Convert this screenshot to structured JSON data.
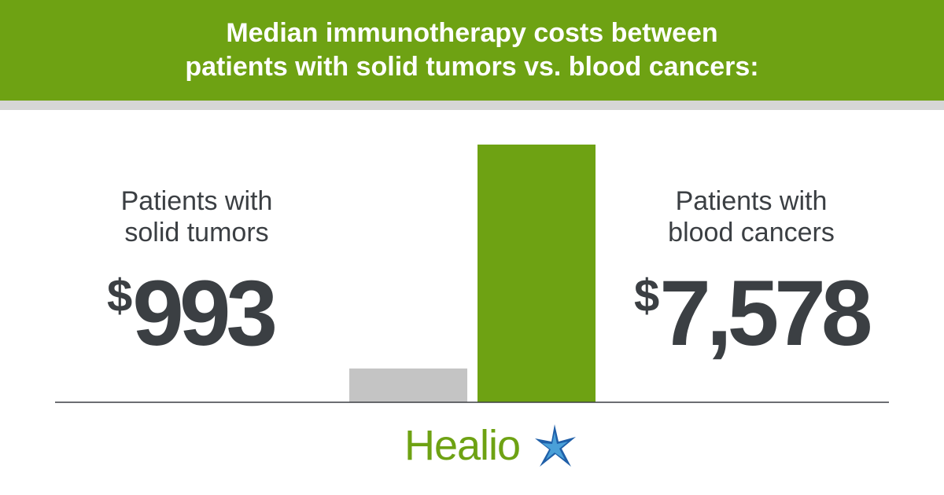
{
  "title_lines": [
    "Median immunotherapy costs between",
    "patients with solid tumors vs. blood cancers:"
  ],
  "groups": [
    {
      "label_lines": [
        "Patients with",
        "solid tumors"
      ],
      "currency": "$",
      "amount": "993"
    },
    {
      "label_lines": [
        "Patients with",
        "blood cancers"
      ],
      "currency": "$",
      "amount": "7,578"
    }
  ],
  "chart_data": {
    "type": "bar",
    "categories": [
      "Patients with solid tumors",
      "Patients with blood cancers"
    ],
    "values": [
      993,
      7578
    ],
    "title": "Median immunotherapy costs between patients with solid tumors vs. blood cancers:",
    "xlabel": "",
    "ylabel": "",
    "ylim": [
      0,
      7578
    ],
    "bar_colors": [
      "#c4c4c4",
      "#6ea213"
    ],
    "grid": false,
    "legend": "none"
  },
  "logo": {
    "text": "Healio",
    "star_colors": [
      "#1f5fa8",
      "#4aa0d8"
    ]
  },
  "colors": {
    "brand_green": "#6ea213",
    "text_dark": "#3b3f43",
    "bar_gray": "#c4c4c4",
    "strip_gray": "#d6d6d6"
  }
}
